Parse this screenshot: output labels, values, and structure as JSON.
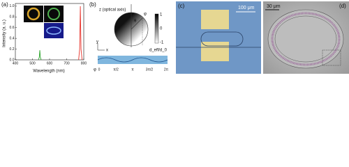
{
  "chart_data": {
    "type": "line",
    "y_label": "Intensity (a. u.)",
    "x_label": "Wavelength (nm)",
    "x": [
      400,
      535,
      540,
      543,
      546,
      551,
      770,
      776,
      780,
      784,
      790,
      800
    ],
    "series": [
      {
        "name": "green emission",
        "color": "#2aa52a",
        "values": [
          null,
          0,
          0.05,
          0.18,
          0.05,
          0,
          null,
          null,
          null,
          null,
          null,
          null
        ]
      },
      {
        "name": "red emission",
        "color": "#e8322a",
        "values": [
          null,
          null,
          null,
          null,
          null,
          null,
          0,
          0.2,
          1.0,
          0.2,
          0,
          null
        ]
      }
    ],
    "xlim": [
      400,
      800
    ],
    "xticks": [
      400,
      500,
      600,
      700,
      800
    ],
    "ylim": [
      0,
      1.05
    ],
    "yticks": [
      {
        "value": 0,
        "label": "0.0"
      },
      {
        "value": 0.2,
        "label": "0.2"
      },
      {
        "value": 0.4,
        "label": "0.4"
      },
      {
        "value": 0.6,
        "label": "0.6"
      },
      {
        "value": 0.8,
        "label": "0.8"
      },
      {
        "value": 1.0,
        "label": "1.0"
      }
    ]
  },
  "panels": {
    "a": "(a)",
    "b": "(b)",
    "c": "(c)",
    "d": "(d)"
  },
  "diagram": {
    "z_axis": "z (optical axis)",
    "theta": "θ",
    "phi": "φ",
    "x_axis": "x",
    "y_axis": "y",
    "bar_top": "1",
    "bar_mid": "0",
    "bar_bottom": "-1",
    "bar_label": "d_eff/d_0",
    "strip_ticks": [
      "0",
      "π/2",
      "π",
      "3π/2",
      "2π"
    ],
    "strip_axis": "φ"
  },
  "scale_bars": {
    "c": "100 μm",
    "d": "30 μm"
  }
}
